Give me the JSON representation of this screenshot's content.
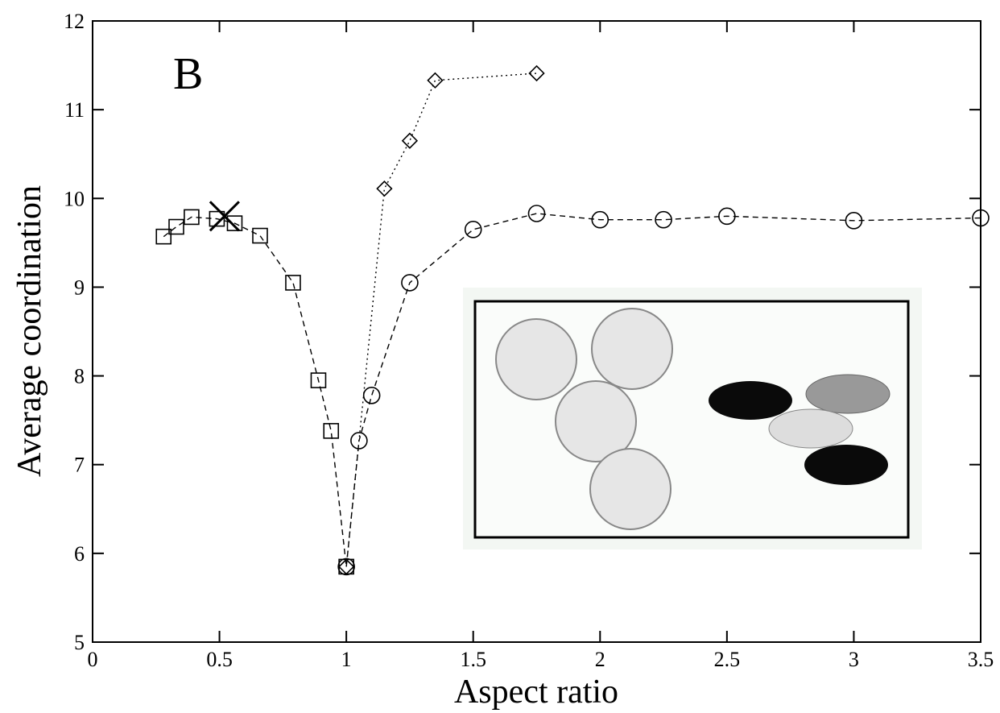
{
  "chart_data": {
    "type": "line",
    "annotation": "B",
    "x_label": "Aspect ratio",
    "y_label": "Average coordination",
    "xlim": [
      0,
      3.5
    ],
    "xticks": [
      0,
      0.5,
      1,
      1.5,
      2,
      2.5,
      3,
      3.5
    ],
    "ylim": [
      5,
      12
    ],
    "yticks": [
      5,
      6,
      7,
      8,
      9,
      10,
      11,
      12
    ],
    "grid": false,
    "series": [
      {
        "marker": "square",
        "linestyle": "dashed",
        "color": "#000000",
        "x": [
          0.28,
          0.33,
          0.39,
          0.49,
          0.56,
          0.66,
          0.79,
          0.89,
          0.94,
          1.0
        ],
        "values": [
          9.57,
          9.68,
          9.79,
          9.77,
          9.72,
          9.58,
          9.05,
          7.95,
          7.38,
          5.85
        ]
      },
      {
        "marker": "circle",
        "linestyle": "dashed",
        "color": "#000000",
        "x": [
          1.0,
          1.05,
          1.1,
          1.25,
          1.5,
          1.75,
          2.0,
          2.25,
          2.5,
          3.0,
          3.5
        ],
        "values": [
          5.85,
          7.27,
          7.78,
          9.05,
          9.65,
          9.83,
          9.76,
          9.76,
          9.8,
          9.75,
          9.78
        ]
      },
      {
        "marker": "diamond",
        "linestyle": "dotted",
        "color": "#000000",
        "x": [
          1.0,
          1.15,
          1.25,
          1.35,
          1.75
        ],
        "values": [
          5.85,
          10.11,
          10.65,
          11.33,
          11.41
        ]
      },
      {
        "marker": "x",
        "linestyle": "none",
        "color": "#000000",
        "x": [
          0.52
        ],
        "values": [
          9.8
        ]
      }
    ]
  }
}
